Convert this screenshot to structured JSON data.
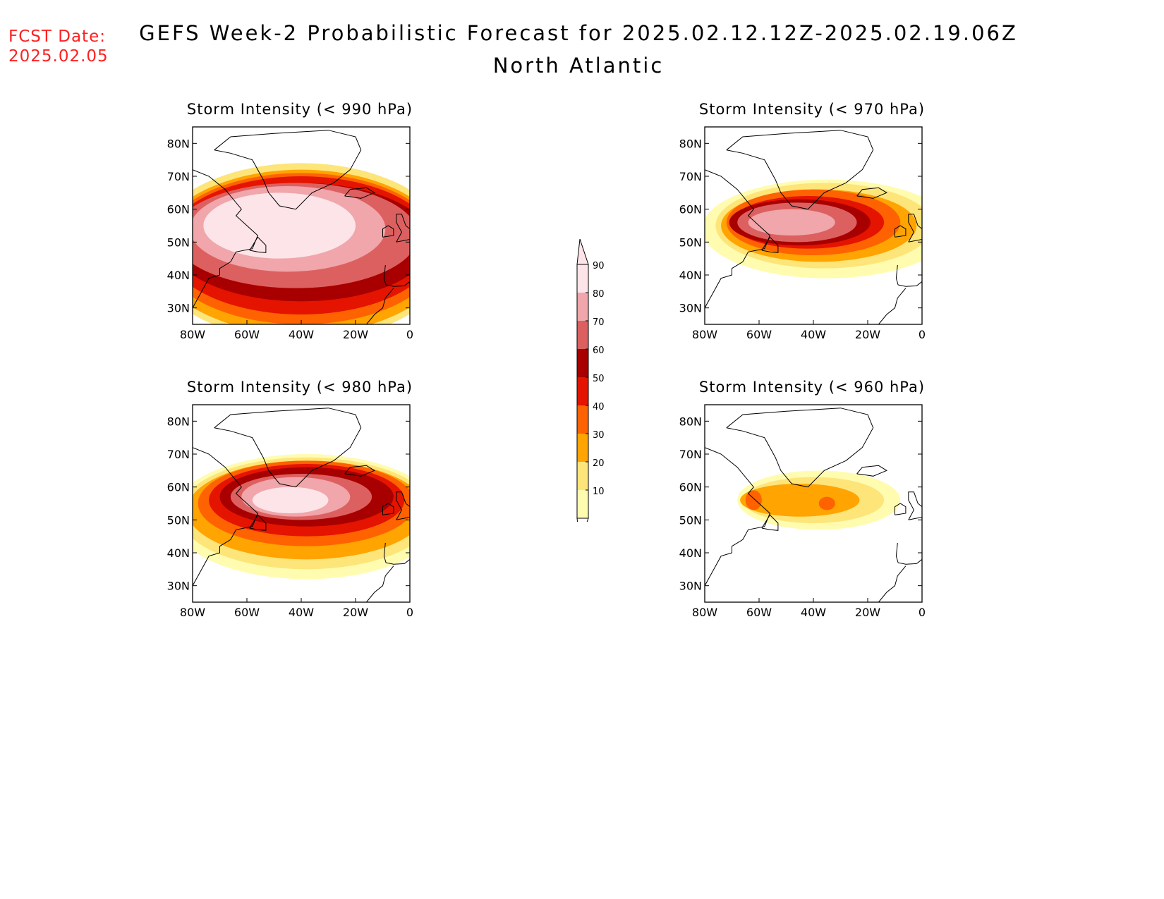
{
  "header": {
    "fcst_label": "FCST Date:",
    "fcst_date": "2025.02.05",
    "title": "GEFS Week-2 Probabilistic Forecast for 2025.02.12.12Z-2025.02.19.06Z",
    "region": "North Atlantic"
  },
  "axes": {
    "lat_labels": [
      "80N",
      "70N",
      "60N",
      "50N",
      "40N",
      "30N"
    ],
    "lat_values": [
      80,
      70,
      60,
      50,
      40,
      30
    ],
    "lon_labels": [
      "80W",
      "60W",
      "40W",
      "20W",
      "0"
    ],
    "lon_values": [
      -80,
      -60,
      -40,
      -20,
      0
    ],
    "lat_range": [
      25,
      85
    ],
    "lon_range": [
      -80,
      0
    ]
  },
  "panels": [
    {
      "title": "Storm Intensity (< 990 hPa)",
      "threshold_hpa": 990,
      "blobs": [
        {
          "lon": -48,
          "lat": 55,
          "rx": 28,
          "ry": 10,
          "level": 90
        },
        {
          "lon": -45,
          "lat": 54,
          "rx": 36,
          "ry": 13,
          "level": 80
        },
        {
          "lon": -42,
          "lat": 52,
          "rx": 45,
          "ry": 16,
          "level": 70
        },
        {
          "lon": -40,
          "lat": 50,
          "rx": 48,
          "ry": 18,
          "level": 60
        },
        {
          "lon": -40,
          "lat": 49,
          "rx": 50,
          "ry": 21,
          "level": 50
        },
        {
          "lon": -40,
          "lat": 48,
          "rx": 52,
          "ry": 23,
          "level": 40
        },
        {
          "lon": -40,
          "lat": 47,
          "rx": 54,
          "ry": 25,
          "level": 30
        },
        {
          "lon": -40,
          "lat": 47,
          "rx": 56,
          "ry": 27,
          "level": 20
        }
      ]
    },
    {
      "title": "Storm Intensity (< 970 hPa)",
      "threshold_hpa": 970,
      "blobs": [
        {
          "lon": -48,
          "lat": 56,
          "rx": 16,
          "ry": 4,
          "level": 80
        },
        {
          "lon": -46,
          "lat": 56,
          "rx": 22,
          "ry": 6,
          "level": 70
        },
        {
          "lon": -45,
          "lat": 56,
          "rx": 26,
          "ry": 7,
          "level": 60
        },
        {
          "lon": -42,
          "lat": 56,
          "rx": 28,
          "ry": 8,
          "level": 50
        },
        {
          "lon": -40,
          "lat": 56,
          "rx": 32,
          "ry": 10,
          "level": 40
        },
        {
          "lon": -38,
          "lat": 55,
          "rx": 36,
          "ry": 11,
          "level": 30
        },
        {
          "lon": -36,
          "lat": 55,
          "rx": 40,
          "ry": 13,
          "level": 20
        },
        {
          "lon": -35,
          "lat": 54,
          "rx": 46,
          "ry": 15,
          "level": 10
        }
      ]
    },
    {
      "title": "Storm Intensity (< 980 hPa)",
      "threshold_hpa": 980,
      "blobs": [
        {
          "lon": -44,
          "lat": 56,
          "rx": 14,
          "ry": 4,
          "level": 90
        },
        {
          "lon": -42,
          "lat": 57,
          "rx": 20,
          "ry": 6,
          "level": 80
        },
        {
          "lon": -40,
          "lat": 57,
          "rx": 26,
          "ry": 7,
          "level": 70
        },
        {
          "lon": -38,
          "lat": 57,
          "rx": 32,
          "ry": 9,
          "level": 60
        },
        {
          "lon": -38,
          "lat": 56,
          "rx": 36,
          "ry": 11,
          "level": 50
        },
        {
          "lon": -38,
          "lat": 55,
          "rx": 40,
          "ry": 13,
          "level": 40
        },
        {
          "lon": -38,
          "lat": 53,
          "rx": 44,
          "ry": 15,
          "level": 30
        },
        {
          "lon": -38,
          "lat": 52,
          "rx": 47,
          "ry": 17,
          "level": 20
        },
        {
          "lon": -38,
          "lat": 51,
          "rx": 50,
          "ry": 19,
          "level": 10
        }
      ]
    },
    {
      "title": "Storm Intensity (< 960 hPa)",
      "threshold_hpa": 960,
      "blobs": [
        {
          "lon": -62,
          "lat": 56,
          "rx": 3,
          "ry": 3,
          "level": 40
        },
        {
          "lon": -35,
          "lat": 55,
          "rx": 3,
          "ry": 2,
          "level": 40
        },
        {
          "lon": -45,
          "lat": 56,
          "rx": 22,
          "ry": 5,
          "level": 30
        },
        {
          "lon": -40,
          "lat": 56,
          "rx": 26,
          "ry": 7,
          "level": 20
        },
        {
          "lon": -38,
          "lat": 56,
          "rx": 30,
          "ry": 9,
          "level": 10
        }
      ]
    }
  ],
  "colorbar": {
    "levels": [
      "10",
      "20",
      "30",
      "40",
      "50",
      "60",
      "70",
      "80",
      "90"
    ],
    "colors": [
      "#fffcb0",
      "#fde57a",
      "#ffa400",
      "#ff6200",
      "#e41400",
      "#a80000",
      "#dd6060",
      "#f0a6aa",
      "#fde4e8"
    ]
  }
}
